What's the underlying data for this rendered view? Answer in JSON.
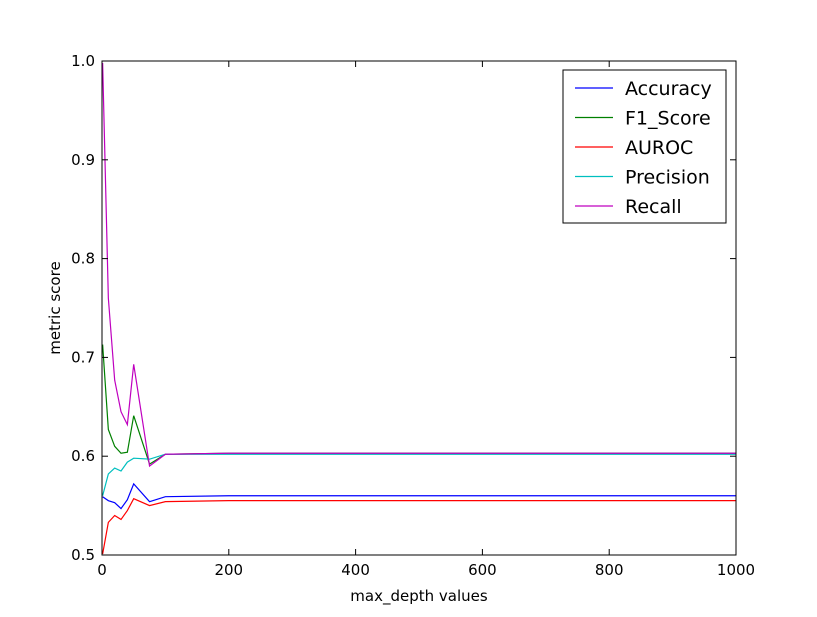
{
  "chart_data": {
    "type": "line",
    "xlabel": "max_depth values",
    "ylabel": "metric score",
    "xlim": [
      0,
      1000
    ],
    "ylim": [
      0.5,
      1.0
    ],
    "xticks": [
      0,
      200,
      400,
      600,
      800,
      1000
    ],
    "yticks": [
      0.5,
      0.6,
      0.7,
      0.8,
      0.9,
      1.0
    ],
    "xtick_labels": [
      "0",
      "200",
      "400",
      "600",
      "800",
      "1000"
    ],
    "ytick_labels": [
      "0.5",
      "0.6",
      "0.7",
      "0.8",
      "0.9",
      "1.0"
    ],
    "grid": false,
    "legend_position": "top-right",
    "x": [
      1,
      10,
      20,
      30,
      40,
      50,
      75,
      100,
      200,
      300,
      400,
      500,
      600,
      700,
      800,
      900,
      1000
    ],
    "series": [
      {
        "name": "Accuracy",
        "color": "#0000ff",
        "values": [
          0.559,
          0.555,
          0.553,
          0.547,
          0.556,
          0.572,
          0.554,
          0.559,
          0.56,
          0.56,
          0.56,
          0.56,
          0.56,
          0.56,
          0.56,
          0.56,
          0.56
        ]
      },
      {
        "name": "F1_Score",
        "color": "#008000",
        "values": [
          0.713,
          0.627,
          0.61,
          0.603,
          0.604,
          0.641,
          0.592,
          0.602,
          0.603,
          0.603,
          0.603,
          0.603,
          0.603,
          0.603,
          0.603,
          0.603,
          0.603
        ]
      },
      {
        "name": "AUROC",
        "color": "#ff0000",
        "values": [
          0.501,
          0.533,
          0.54,
          0.536,
          0.545,
          0.557,
          0.55,
          0.554,
          0.555,
          0.555,
          0.555,
          0.555,
          0.555,
          0.555,
          0.555,
          0.555,
          0.555
        ]
      },
      {
        "name": "Precision",
        "color": "#00bfbf",
        "values": [
          0.56,
          0.582,
          0.588,
          0.585,
          0.594,
          0.598,
          0.597,
          0.602,
          0.602,
          0.602,
          0.602,
          0.602,
          0.602,
          0.602,
          0.602,
          0.602,
          0.602
        ]
      },
      {
        "name": "Recall",
        "color": "#bf00bf",
        "values": [
          0.998,
          0.76,
          0.677,
          0.645,
          0.632,
          0.693,
          0.59,
          0.602,
          0.603,
          0.603,
          0.603,
          0.603,
          0.603,
          0.603,
          0.603,
          0.603,
          0.603
        ]
      }
    ]
  }
}
